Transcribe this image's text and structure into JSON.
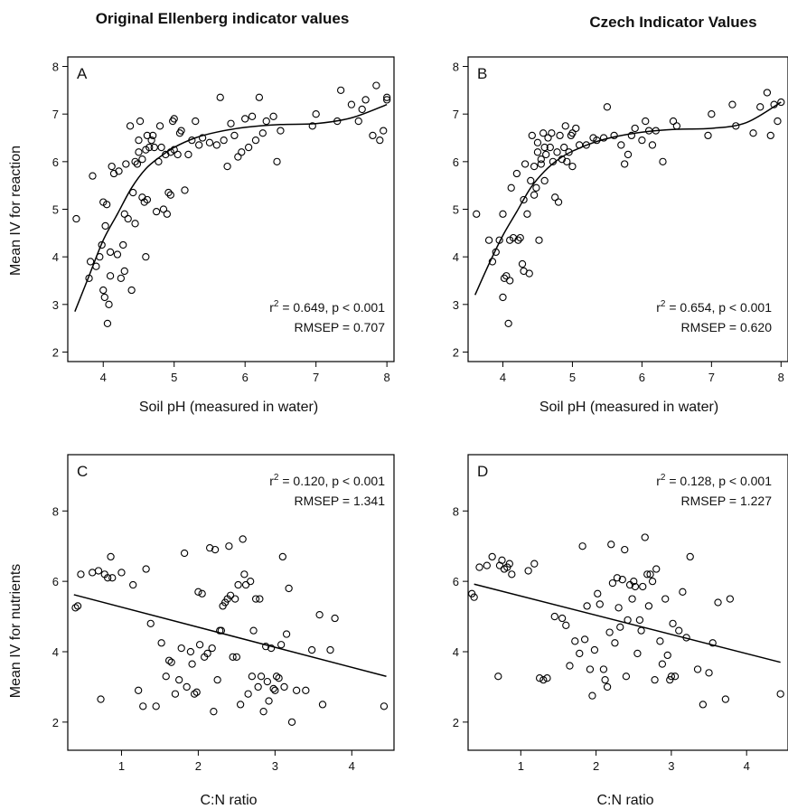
{
  "titles": {
    "left": "Original Ellenberg indicator values",
    "right": "Czech Indicator Values"
  },
  "axis_titles": {
    "ph_x": "Soil pH (measured in water)",
    "cn_x": "C:N ratio",
    "reaction_y": "Mean IV for reaction",
    "nutrients_y": "Mean IV for nutrients"
  },
  "chart_data": [
    {
      "id": "A",
      "type": "scatter",
      "panel_label": "A",
      "xlabel": "Soil pH (measured in water)",
      "ylabel": "Mean IV for reaction",
      "xlim": [
        3.5,
        8.1
      ],
      "ylim": [
        1.8,
        8.2
      ],
      "xticks": [
        4,
        5,
        6,
        7,
        8
      ],
      "yticks": [
        2,
        3,
        4,
        5,
        6,
        7,
        8
      ],
      "stats": [
        "r = 0.649, p < 0.001",
        "RMSEP = 0.707"
      ],
      "r_superscript": "2",
      "fit": {
        "kind": "smooth",
        "x": [
          3.6,
          3.8,
          4.0,
          4.2,
          4.4,
          4.6,
          4.8,
          5.0,
          5.3,
          5.6,
          6.0,
          6.5,
          7.0,
          7.5,
          8.0
        ],
        "y": [
          2.85,
          3.6,
          4.35,
          4.9,
          5.45,
          5.85,
          6.1,
          6.3,
          6.5,
          6.62,
          6.72,
          6.78,
          6.8,
          6.92,
          7.2
        ]
      },
      "points": {
        "x": [
          3.62,
          3.8,
          3.82,
          3.85,
          3.9,
          3.95,
          3.98,
          4.0,
          4.0,
          4.02,
          4.03,
          4.05,
          4.06,
          4.08,
          4.1,
          4.1,
          4.12,
          4.15,
          4.2,
          4.22,
          4.25,
          4.28,
          4.3,
          4.3,
          4.32,
          4.35,
          4.38,
          4.4,
          4.42,
          4.45,
          4.45,
          4.48,
          4.5,
          4.5,
          4.52,
          4.55,
          4.55,
          4.58,
          4.6,
          4.6,
          4.62,
          4.62,
          4.65,
          4.68,
          4.7,
          4.72,
          4.75,
          4.78,
          4.8,
          4.82,
          4.85,
          4.88,
          4.9,
          4.92,
          4.95,
          4.95,
          4.98,
          5.0,
          5.0,
          5.05,
          5.08,
          5.1,
          5.15,
          5.2,
          5.25,
          5.3,
          5.35,
          5.4,
          5.5,
          5.6,
          5.65,
          5.7,
          5.75,
          5.8,
          5.85,
          5.9,
          5.95,
          6.0,
          6.05,
          6.1,
          6.15,
          6.2,
          6.25,
          6.3,
          6.4,
          6.45,
          6.5,
          6.95,
          7.0,
          7.3,
          7.35,
          7.5,
          7.6,
          7.65,
          7.7,
          7.8,
          7.85,
          7.9,
          7.95,
          8.0,
          8.0
        ],
        "y": [
          4.8,
          3.55,
          3.9,
          5.7,
          3.8,
          4.0,
          4.25,
          3.3,
          5.15,
          3.15,
          4.65,
          5.1,
          2.6,
          3.0,
          3.6,
          4.1,
          5.9,
          5.75,
          4.05,
          5.8,
          3.55,
          4.25,
          3.7,
          4.9,
          5.95,
          4.8,
          6.75,
          3.3,
          5.35,
          4.7,
          6.0,
          5.95,
          6.2,
          6.45,
          6.85,
          5.25,
          6.05,
          5.15,
          4.0,
          6.25,
          5.2,
          6.55,
          6.3,
          6.45,
          6.55,
          6.3,
          4.95,
          6.0,
          6.75,
          6.3,
          5.0,
          6.15,
          4.9,
          5.35,
          5.3,
          6.2,
          6.85,
          6.25,
          6.9,
          6.15,
          6.6,
          6.65,
          5.4,
          6.15,
          6.45,
          6.85,
          6.35,
          6.5,
          6.4,
          6.35,
          7.35,
          6.45,
          5.9,
          6.8,
          6.55,
          6.1,
          6.2,
          6.9,
          6.3,
          6.95,
          6.45,
          7.35,
          6.6,
          6.85,
          6.95,
          6.0,
          6.65,
          6.75,
          7.0,
          6.85,
          7.5,
          7.2,
          6.85,
          7.1,
          7.3,
          6.55,
          7.6,
          6.45,
          6.65,
          7.35,
          7.3
        ]
      }
    },
    {
      "id": "B",
      "type": "scatter",
      "panel_label": "B",
      "xlabel": "Soil pH (measured in water)",
      "ylabel": "",
      "xlim": [
        3.5,
        8.1
      ],
      "ylim": [
        1.8,
        8.2
      ],
      "xticks": [
        4,
        5,
        6,
        7,
        8
      ],
      "yticks": [
        2,
        3,
        4,
        5,
        6,
        7,
        8
      ],
      "stats": [
        "r = 0.654, p < 0.001",
        "RMSEP = 0.620"
      ],
      "r_superscript": "2",
      "fit": {
        "kind": "smooth",
        "x": [
          3.6,
          3.8,
          4.0,
          4.2,
          4.4,
          4.6,
          4.8,
          5.0,
          5.3,
          5.6,
          6.0,
          6.5,
          7.0,
          7.5,
          8.0
        ],
        "y": [
          3.2,
          3.85,
          4.45,
          4.95,
          5.45,
          5.8,
          6.05,
          6.22,
          6.4,
          6.52,
          6.62,
          6.68,
          6.7,
          6.82,
          7.25
        ]
      },
      "points": {
        "x": [
          3.62,
          3.8,
          3.85,
          3.9,
          3.95,
          4.0,
          4.0,
          4.02,
          4.05,
          4.08,
          4.1,
          4.1,
          4.12,
          4.15,
          4.2,
          4.22,
          4.25,
          4.28,
          4.3,
          4.3,
          4.32,
          4.35,
          4.38,
          4.4,
          4.42,
          4.45,
          4.45,
          4.48,
          4.5,
          4.5,
          4.52,
          4.55,
          4.55,
          4.58,
          4.6,
          4.6,
          4.62,
          4.65,
          4.68,
          4.7,
          4.72,
          4.75,
          4.78,
          4.8,
          4.82,
          4.85,
          4.88,
          4.9,
          4.92,
          4.95,
          4.98,
          5.0,
          5.0,
          5.05,
          5.1,
          5.2,
          5.3,
          5.35,
          5.45,
          5.5,
          5.6,
          5.7,
          5.75,
          5.8,
          5.85,
          5.9,
          6.0,
          6.05,
          6.1,
          6.15,
          6.2,
          6.3,
          6.45,
          6.5,
          6.95,
          7.0,
          7.3,
          7.35,
          7.6,
          7.7,
          7.8,
          7.85,
          7.9,
          7.95,
          8.0
        ],
        "y": [
          4.9,
          4.35,
          3.9,
          4.1,
          4.35,
          3.15,
          4.9,
          3.55,
          3.6,
          2.6,
          3.5,
          4.35,
          5.45,
          4.4,
          5.75,
          4.35,
          4.4,
          3.85,
          3.7,
          5.2,
          5.95,
          4.9,
          3.65,
          5.6,
          6.55,
          5.3,
          5.9,
          5.45,
          6.2,
          6.4,
          4.35,
          5.95,
          6.05,
          6.6,
          5.6,
          6.3,
          6.15,
          6.5,
          6.3,
          6.6,
          6.0,
          5.25,
          6.2,
          5.15,
          6.55,
          6.05,
          6.3,
          6.75,
          6.0,
          6.2,
          6.55,
          5.9,
          6.6,
          6.7,
          6.35,
          6.35,
          6.5,
          6.45,
          6.5,
          7.15,
          6.55,
          6.35,
          5.95,
          6.15,
          6.55,
          6.7,
          6.45,
          6.85,
          6.65,
          6.35,
          6.65,
          6.0,
          6.85,
          6.75,
          6.55,
          7.0,
          7.2,
          6.75,
          6.6,
          7.15,
          7.45,
          6.55,
          7.2,
          6.85,
          7.25
        ]
      }
    },
    {
      "id": "C",
      "type": "scatter",
      "panel_label": "C",
      "xlabel": "C:N ratio",
      "ylabel": "Mean IV for nutrients",
      "xlim": [
        0.3,
        4.55
      ],
      "ylim": [
        1.2,
        9.6
      ],
      "xticks": [
        1,
        2,
        3,
        4
      ],
      "yticks": [
        2,
        4,
        6,
        8
      ],
      "stats": [
        "r = 0.120, p < 0.001",
        "RMSEP = 1.341"
      ],
      "r_superscript": "2",
      "fit": {
        "kind": "linear",
        "x": [
          0.38,
          4.45
        ],
        "y": [
          5.62,
          3.3
        ]
      },
      "points": {
        "x": [
          0.4,
          0.43,
          0.47,
          0.62,
          0.7,
          0.73,
          0.78,
          0.82,
          0.86,
          0.88,
          1.0,
          1.15,
          1.22,
          1.28,
          1.32,
          1.38,
          1.45,
          1.52,
          1.58,
          1.62,
          1.65,
          1.7,
          1.75,
          1.78,
          1.82,
          1.85,
          1.9,
          1.92,
          1.95,
          1.98,
          2.0,
          2.02,
          2.05,
          2.08,
          2.12,
          2.15,
          2.18,
          2.2,
          2.22,
          2.25,
          2.28,
          2.3,
          2.32,
          2.35,
          2.38,
          2.4,
          2.42,
          2.45,
          2.48,
          2.5,
          2.52,
          2.55,
          2.58,
          2.6,
          2.62,
          2.65,
          2.68,
          2.7,
          2.72,
          2.75,
          2.78,
          2.8,
          2.82,
          2.85,
          2.88,
          2.9,
          2.92,
          2.95,
          2.98,
          3.0,
          3.02,
          3.05,
          3.08,
          3.1,
          3.12,
          3.15,
          3.18,
          3.22,
          3.28,
          3.4,
          3.48,
          3.58,
          3.62,
          3.72,
          3.78,
          4.42
        ],
        "y": [
          5.25,
          5.3,
          6.2,
          6.25,
          6.3,
          2.65,
          6.2,
          6.1,
          6.7,
          6.1,
          6.25,
          5.9,
          2.9,
          2.45,
          6.35,
          4.8,
          2.45,
          4.25,
          3.3,
          3.75,
          3.7,
          2.8,
          3.2,
          4.1,
          6.8,
          3.0,
          4.0,
          3.65,
          2.8,
          2.85,
          5.7,
          4.2,
          5.65,
          3.85,
          3.95,
          6.95,
          4.1,
          2.3,
          6.9,
          3.2,
          4.6,
          4.6,
          5.3,
          5.4,
          5.5,
          7.0,
          5.6,
          3.85,
          5.5,
          3.85,
          5.9,
          2.5,
          7.2,
          6.2,
          5.9,
          2.8,
          6.0,
          3.3,
          4.6,
          5.5,
          3.0,
          5.5,
          3.3,
          2.3,
          4.15,
          3.15,
          2.6,
          4.1,
          2.95,
          2.9,
          3.3,
          3.25,
          4.2,
          6.7,
          3.0,
          4.5,
          5.8,
          2.0,
          2.9,
          2.9,
          4.05,
          5.05,
          2.5,
          4.05,
          4.95,
          2.45
        ]
      }
    },
    {
      "id": "D",
      "type": "scatter",
      "panel_label": "D",
      "xlabel": "C:N ratio",
      "ylabel": "",
      "xlim": [
        0.3,
        4.55
      ],
      "ylim": [
        1.2,
        9.6
      ],
      "xticks": [
        1,
        2,
        3,
        4
      ],
      "yticks": [
        2,
        4,
        6,
        8
      ],
      "stats": [
        "r = 0.128, p < 0.001",
        "RMSEP = 1.227"
      ],
      "r_superscript": "2",
      "fit": {
        "kind": "linear",
        "x": [
          0.38,
          4.45
        ],
        "y": [
          5.92,
          3.7
        ]
      },
      "points": {
        "x": [
          0.35,
          0.38,
          0.45,
          0.55,
          0.62,
          0.7,
          0.72,
          0.75,
          0.78,
          0.82,
          0.85,
          0.88,
          1.1,
          1.18,
          1.25,
          1.3,
          1.35,
          1.45,
          1.55,
          1.6,
          1.65,
          1.72,
          1.78,
          1.82,
          1.85,
          1.88,
          1.92,
          1.95,
          1.98,
          2.02,
          2.05,
          2.1,
          2.12,
          2.15,
          2.18,
          2.2,
          2.22,
          2.25,
          2.28,
          2.3,
          2.32,
          2.35,
          2.38,
          2.4,
          2.42,
          2.45,
          2.48,
          2.5,
          2.52,
          2.55,
          2.58,
          2.6,
          2.62,
          2.65,
          2.68,
          2.7,
          2.72,
          2.75,
          2.78,
          2.8,
          2.85,
          2.88,
          2.92,
          2.95,
          2.98,
          3.0,
          3.02,
          3.05,
          3.1,
          3.15,
          3.2,
          3.25,
          3.35,
          3.42,
          3.5,
          3.55,
          3.62,
          3.72,
          3.78,
          4.45
        ],
        "y": [
          5.65,
          5.55,
          6.4,
          6.45,
          6.7,
          3.3,
          6.45,
          6.6,
          6.35,
          6.4,
          6.5,
          6.2,
          6.3,
          6.5,
          3.25,
          3.2,
          3.25,
          5.0,
          4.95,
          4.75,
          3.6,
          4.3,
          3.95,
          7.0,
          4.35,
          5.3,
          3.5,
          2.75,
          4.05,
          5.65,
          5.35,
          3.5,
          3.2,
          3.0,
          4.55,
          7.05,
          5.95,
          4.25,
          6.1,
          5.25,
          4.7,
          6.05,
          6.9,
          3.3,
          4.9,
          5.9,
          5.5,
          6.0,
          5.85,
          3.95,
          4.9,
          4.6,
          5.85,
          7.25,
          6.2,
          5.3,
          6.2,
          6.0,
          3.2,
          6.35,
          4.3,
          3.65,
          5.5,
          3.9,
          3.2,
          3.3,
          4.8,
          3.3,
          4.6,
          5.7,
          4.4,
          6.7,
          3.5,
          2.5,
          3.4,
          4.25,
          5.4,
          2.65,
          5.5,
          2.8
        ]
      }
    }
  ]
}
